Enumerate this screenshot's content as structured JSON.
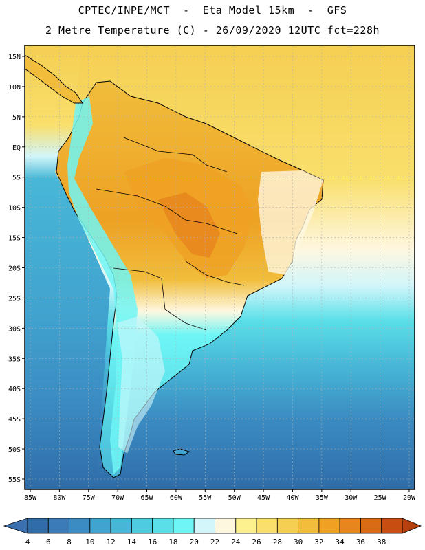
{
  "title": {
    "line1": "CPTEC/INPE/MCT  -  Eta Model 15km  -  GFS",
    "line2": "2 Metre Temperature (C) - 26/09/2020 12UTC fct=228h"
  },
  "map": {
    "lat_labels": [
      "15N",
      "10N",
      "5N",
      "EQ",
      "5S",
      "10S",
      "15S",
      "20S",
      "25S",
      "30S",
      "35S",
      "40S",
      "45S",
      "50S",
      "55S"
    ],
    "lon_labels": [
      "85W",
      "80W",
      "75W",
      "70W",
      "65W",
      "60W",
      "55W",
      "50W",
      "45W",
      "40W",
      "35W",
      "30W",
      "25W",
      "20W"
    ],
    "lat_range": [
      15,
      -55
    ],
    "lon_range": [
      -85,
      -20
    ]
  },
  "colorbar": {
    "labels": [
      "4",
      "6",
      "8",
      "10",
      "12",
      "14",
      "16",
      "18",
      "20",
      "22",
      "24",
      "26",
      "28",
      "30",
      "32",
      "34",
      "36",
      "38"
    ],
    "colors": [
      "#2f6ca8",
      "#3a7bb8",
      "#3b8cc2",
      "#41a3cf",
      "#47b7d7",
      "#4fcbe0",
      "#5adfe8",
      "#6ef6f6",
      "#d2f6fa",
      "#fef7e0",
      "#fcf08f",
      "#f9df6c",
      "#f5cf52",
      "#f1bd3b",
      "#eea123",
      "#e6861c",
      "#d96a16",
      "#c84d10"
    ],
    "under_color": "#3a6fb0",
    "over_color": "#b5410f"
  },
  "colors": {
    "frame": "#000000",
    "grid": "#b0b0b0",
    "land_warm": "#eea123",
    "land_hot": "#e6861c",
    "land_mild": "#f5cf52",
    "andes_cold": "#6ef6f6",
    "patagonia": "#47b7d7"
  }
}
